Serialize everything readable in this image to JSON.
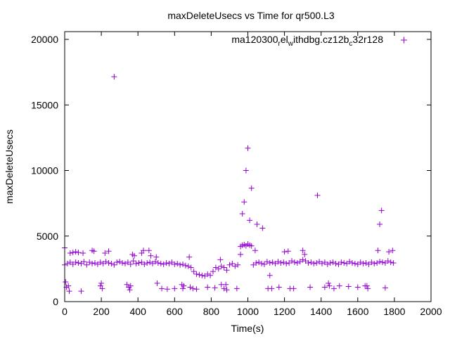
{
  "chart_data": {
    "type": "scatter",
    "title": "maxDeleteUsecs vs Time for qr500.L3",
    "xlabel": "Time(s)",
    "ylabel": "maxDeleteUsecs",
    "xlim": [
      0,
      2000
    ],
    "ylim": [
      0,
      20000
    ],
    "xticks": [
      0,
      200,
      400,
      600,
      800,
      1000,
      1200,
      1400,
      1600,
      1800,
      2000
    ],
    "yticks": [
      0,
      5000,
      10000,
      15000,
      20000
    ],
    "grid": false,
    "legend": {
      "position": "top-right",
      "label_main": "ma120300",
      "sub1": "r",
      "mid": "el",
      "sub2": "w",
      "mid2": "ithdbg.cz12b",
      "sub3": "c",
      "tail": "32r128"
    },
    "series": [
      {
        "name": "ma120300_rel_withdbg.cz12b_c32r128",
        "color": "#9400d3",
        "marker": "plus",
        "x": [
          0,
          15,
          30,
          45,
          60,
          75,
          90,
          105,
          120,
          135,
          150,
          165,
          180,
          195,
          210,
          225,
          240,
          255,
          270,
          285,
          300,
          315,
          330,
          345,
          360,
          375,
          390,
          405,
          420,
          435,
          450,
          465,
          480,
          495,
          510,
          525,
          540,
          555,
          570,
          585,
          600,
          615,
          630,
          645,
          660,
          675,
          690,
          705,
          720,
          735,
          750,
          765,
          780,
          795,
          810,
          825,
          840,
          855,
          870,
          885,
          900,
          915,
          930,
          945,
          960,
          970,
          980,
          990,
          1000,
          1010,
          1020,
          1030,
          1045,
          1060,
          1075,
          1090,
          1105,
          1120,
          1135,
          1150,
          1165,
          1180,
          1195,
          1210,
          1225,
          1240,
          1255,
          1270,
          1285,
          1300,
          1315,
          1330,
          1345,
          1360,
          1375,
          1390,
          1405,
          1420,
          1435,
          1450,
          1465,
          1480,
          1495,
          1510,
          1525,
          1540,
          1555,
          1570,
          1585,
          1600,
          1615,
          1630,
          1645,
          1660,
          1675,
          1690,
          1705,
          1720,
          1735,
          1750,
          1765,
          1780,
          1795,
          0,
          5,
          10,
          20,
          25,
          30,
          45,
          60,
          75,
          90,
          100,
          150,
          160,
          195,
          200,
          205,
          220,
          240,
          270,
          340,
          350,
          355,
          360,
          370,
          380,
          420,
          430,
          460,
          470,
          500,
          505,
          530,
          560,
          600,
          640,
          645,
          650,
          680,
          685,
          700,
          720,
          780,
          820,
          850,
          855,
          870,
          880,
          885,
          940,
          960,
          970,
          980,
          990,
          1000,
          1010,
          1020,
          1040,
          1050,
          1080,
          1110,
          1120,
          1130,
          1170,
          1200,
          1220,
          1230,
          1250,
          1300,
          1310,
          1340,
          1380,
          1420,
          1440,
          1445,
          1470,
          1500,
          1550,
          1600,
          1640,
          1650,
          1655,
          1710,
          1720,
          1730,
          1750,
          1770,
          1790
        ],
        "y": [
          2800,
          2900,
          3000,
          2850,
          3000,
          2950,
          2900,
          3050,
          2800,
          3000,
          2900,
          2950,
          2850,
          3000,
          2900,
          3050,
          2950,
          2900,
          2800,
          3000,
          3050,
          2950,
          2900,
          3000,
          2850,
          3100,
          2900,
          2950,
          3000,
          2850,
          2950,
          3000,
          2900,
          3050,
          2950,
          2900,
          2850,
          2950,
          2900,
          3000,
          2850,
          2900,
          2800,
          2850,
          2750,
          2700,
          2600,
          2300,
          2100,
          2050,
          2000,
          1950,
          2100,
          2000,
          2300,
          2600,
          2500,
          2700,
          2600,
          2400,
          2800,
          2900,
          2700,
          2800,
          4200,
          4300,
          4350,
          4250,
          4400,
          4300,
          4250,
          2800,
          2950,
          3000,
          2900,
          2850,
          3050,
          2950,
          3000,
          2900,
          3050,
          2950,
          3000,
          2900,
          2950,
          3100,
          3000,
          2950,
          3050,
          3200,
          3100,
          2950,
          3000,
          2900,
          2950,
          3050,
          2900,
          3000,
          2850,
          2950,
          3000,
          2900,
          2850,
          3000,
          2950,
          2900,
          3050,
          2950,
          2900,
          2850,
          3000,
          2900,
          2950,
          2850,
          3000,
          2900,
          2950,
          3050,
          3000,
          2950,
          3100,
          3000,
          2950,
          4100,
          1500,
          1100,
          1200,
          800,
          3700,
          3750,
          3800,
          3750,
          800,
          3700,
          3900,
          3850,
          1200,
          1400,
          1000,
          3700,
          3850,
          17150,
          1300,
          1100,
          900,
          1200,
          3600,
          3500,
          3700,
          3900,
          3900,
          3500,
          3400,
          1400,
          1000,
          950,
          1000,
          1300,
          1000,
          1200,
          3400,
          1100,
          1000,
          950,
          1100,
          1050,
          3200,
          1300,
          1000,
          1300,
          900,
          1000,
          3600,
          6700,
          7600,
          10000,
          11700,
          6200,
          8650,
          3900,
          5900,
          5600,
          1000,
          2000,
          1000,
          1100,
          3800,
          3850,
          1000,
          1000,
          3900,
          3600,
          1100,
          8100,
          1100,
          1400,
          1200,
          1000,
          1200,
          1150,
          1100,
          1200,
          1200,
          1000,
          3900,
          5900,
          6950,
          1050,
          3800,
          3900
        ]
      }
    ]
  }
}
